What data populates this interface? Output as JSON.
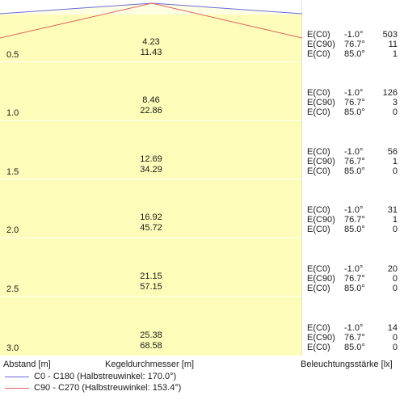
{
  "colors": {
    "cone_fill": "#fdfdb9",
    "cone_top_fill": "#fefee0",
    "grid_line": "#ffffff",
    "panel_border": "#c9c9c9",
    "series_c0": "#6a6adb",
    "series_c90": "#e06060"
  },
  "rows": [
    {
      "distance": "0.5",
      "cone_value_1": "4.23",
      "cone_value_2": "11.43",
      "lux": [
        {
          "name": "E(C0)",
          "angle": "-1.0°",
          "value": "503"
        },
        {
          "name": "E(C90)",
          "angle": "76.7°",
          "value": "11"
        },
        {
          "name": "E(C0)",
          "angle": "85.0°",
          "value": "1"
        }
      ]
    },
    {
      "distance": "1.0",
      "cone_value_1": "8.46",
      "cone_value_2": "22.86",
      "lux": [
        {
          "name": "E(C0)",
          "angle": "-1.0°",
          "value": "126"
        },
        {
          "name": "E(C90)",
          "angle": "76.7°",
          "value": "3"
        },
        {
          "name": "E(C0)",
          "angle": "85.0°",
          "value": "0"
        }
      ]
    },
    {
      "distance": "1.5",
      "cone_value_1": "12.69",
      "cone_value_2": "34.29",
      "lux": [
        {
          "name": "E(C0)",
          "angle": "-1.0°",
          "value": "56"
        },
        {
          "name": "E(C90)",
          "angle": "76.7°",
          "value": "1"
        },
        {
          "name": "E(C0)",
          "angle": "85.0°",
          "value": "0"
        }
      ]
    },
    {
      "distance": "2.0",
      "cone_value_1": "16.92",
      "cone_value_2": "45.72",
      "lux": [
        {
          "name": "E(C0)",
          "angle": "-1.0°",
          "value": "31"
        },
        {
          "name": "E(C90)",
          "angle": "76.7°",
          "value": "1"
        },
        {
          "name": "E(C0)",
          "angle": "85.0°",
          "value": "0"
        }
      ]
    },
    {
      "distance": "2.5",
      "cone_value_1": "21.15",
      "cone_value_2": "57.15",
      "lux": [
        {
          "name": "E(C0)",
          "angle": "-1.0°",
          "value": "20"
        },
        {
          "name": "E(C90)",
          "angle": "76.7°",
          "value": "0"
        },
        {
          "name": "E(C0)",
          "angle": "85.0°",
          "value": "0"
        }
      ]
    },
    {
      "distance": "3.0",
      "cone_value_1": "25.38",
      "cone_value_2": "68.58",
      "lux": [
        {
          "name": "E(C0)",
          "angle": "-1.0°",
          "value": "14"
        },
        {
          "name": "E(C90)",
          "angle": "76.7°",
          "value": "0"
        },
        {
          "name": "E(C0)",
          "angle": "85.0°",
          "value": "0"
        }
      ]
    }
  ],
  "footer": {
    "distance_label": "Abstand [m]",
    "diameter_label": "Kegeldurchmesser [m]",
    "illuminance_label": "Beleuchtungsstärke [lx]"
  },
  "legend": [
    {
      "text": "C0 - C180 (Halbstreuwinkel: 170.0°)",
      "color_key": "series_c0"
    },
    {
      "text": "C90 - C270 (Halbstreuwinkel: 153.4°)",
      "color_key": "series_c90"
    }
  ]
}
